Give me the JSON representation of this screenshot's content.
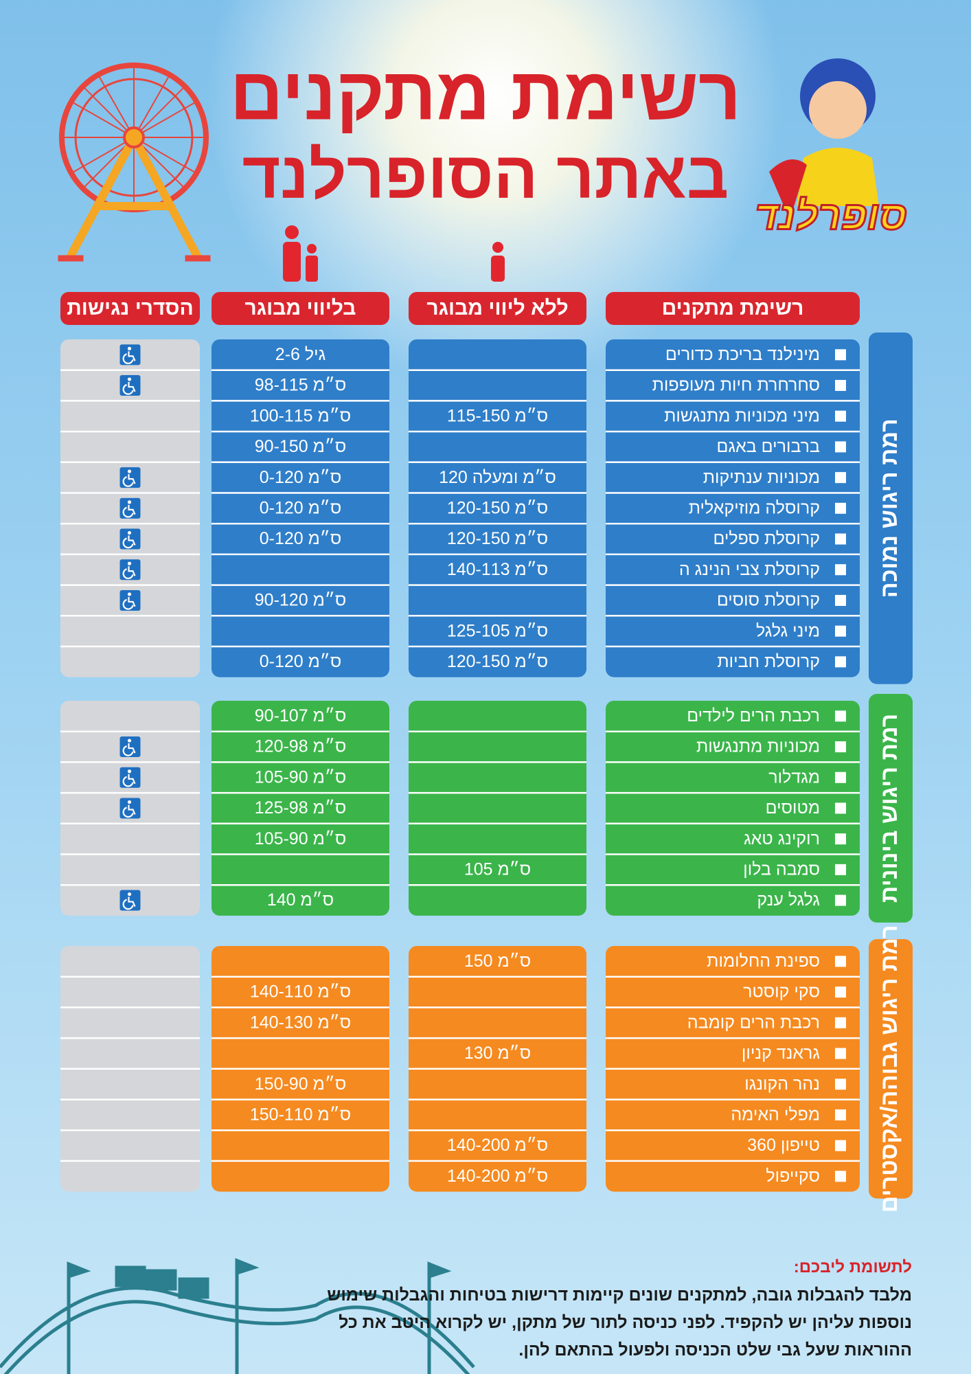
{
  "header": {
    "title_lines": [
      "רשימת מתקנים",
      "באתר הסופרלנד"
    ],
    "logo": "סופרלנד"
  },
  "table": {
    "columns": [
      "רשימת מתקנים",
      "ללא ליווי מבוגר",
      "בליווי מבוגר",
      "הסדרי נגישות"
    ],
    "sections": [
      {
        "label": "רמת ריגוש נמוכה",
        "color": "#2f7ec9",
        "rows": [
          {
            "name": "מינילנד בריכת כדורים",
            "no_adult": null,
            "with_adult": "גיל 2-6",
            "accessible": true
          },
          {
            "name": "סחרחרת חיות מעופפות",
            "no_adult": null,
            "with_adult": "98-115 ס״מ",
            "accessible": true
          },
          {
            "name": "מיני מכוניות מתנגשות",
            "no_adult": "115-150 ס״מ",
            "with_adult": "100-115 ס״מ",
            "accessible": false
          },
          {
            "name": "ברבורים באגם",
            "no_adult": null,
            "with_adult": "90-150 ס״מ",
            "accessible": false
          },
          {
            "name": "מכוניות ענתיקות",
            "no_adult": "120 ס״מ ומעלה",
            "with_adult": "0-120 ס״מ",
            "accessible": true
          },
          {
            "name": "קרוסלה מוזיקאלית",
            "no_adult": "120-150 ס״מ",
            "with_adult": "0-120 ס״מ",
            "accessible": true
          },
          {
            "name": "קרוסלת ספלים",
            "no_adult": "120-150 ס״מ",
            "with_adult": "0-120 ס״מ",
            "accessible": true
          },
          {
            "name": "קרוסלת צבי הנינג ה",
            "no_adult": "140-113 ס״מ",
            "with_adult": null,
            "accessible": true
          },
          {
            "name": "קרוסלת סוסים",
            "no_adult": null,
            "with_adult": "90-120 ס״מ",
            "accessible": true
          },
          {
            "name": "מיני גלגל",
            "no_adult": "125-105 ס״מ",
            "with_adult": null,
            "accessible": false
          },
          {
            "name": "קרוסלת חביות",
            "no_adult": "120-150 ס״מ",
            "with_adult": "0-120 ס״מ",
            "accessible": false
          }
        ]
      },
      {
        "label": "רמת ריגוש בינונית",
        "color": "#3bb54a",
        "rows": [
          {
            "name": "רכבת הרים לילדים",
            "no_adult": null,
            "with_adult": "90-107 ס״מ",
            "accessible": false
          },
          {
            "name": "מכוניות מתנגשות",
            "no_adult": null,
            "with_adult": "120-98 ס״מ",
            "accessible": true
          },
          {
            "name": "מגדלור",
            "no_adult": null,
            "with_adult": "105-90 ס״מ",
            "accessible": true
          },
          {
            "name": "מטוסים",
            "no_adult": null,
            "with_adult": "125-98 ס״מ",
            "accessible": true
          },
          {
            "name": "רוקינג טאג",
            "no_adult": null,
            "with_adult": "105-90 ס״מ",
            "accessible": false
          },
          {
            "name": "סמבה בלון",
            "no_adult": "105 ס״מ",
            "with_adult": null,
            "accessible": false
          },
          {
            "name": "גלגל ענק",
            "no_adult": null,
            "with_adult": "140 ס״מ",
            "accessible": true
          }
        ]
      },
      {
        "label": "רמת ריגוש גבוהה/אקסטרים",
        "color": "#f58a20",
        "rows": [
          {
            "name": "ספינת החלומות",
            "no_adult": "150 ס״מ",
            "with_adult": null,
            "accessible": false
          },
          {
            "name": "סקי קוסטר",
            "no_adult": null,
            "with_adult": "140-110 ס״מ",
            "accessible": false
          },
          {
            "name": "רכבת הרים קומבה",
            "no_adult": null,
            "with_adult": "140-130 ס״מ",
            "accessible": false
          },
          {
            "name": "גראנד קניון",
            "no_adult": "130 ס״מ",
            "with_adult": null,
            "accessible": false
          },
          {
            "name": "נהר הקונגו",
            "no_adult": null,
            "with_adult": "150-90 ס״מ",
            "accessible": false
          },
          {
            "name": "מפלי האימה",
            "no_adult": null,
            "with_adult": "150-110 ס״מ",
            "accessible": false
          },
          {
            "name": "טייפון 360",
            "no_adult": "140-200 ס״מ",
            "with_adult": null,
            "accessible": false
          },
          {
            "name": "סקייפול",
            "no_adult": "140-200 ס״מ",
            "with_adult": null,
            "accessible": false
          }
        ]
      }
    ]
  },
  "note": {
    "title": "לתשומת ליבכם:",
    "lines": [
      "מלבד להגבלות גובה, למתקנים שונים קיימות דרישות בטיחות והגבלות שימוש",
      "נוספות עליהן יש להקפיד. לפני כניסה לתור של מתקן, יש לקרוא היטב את כל",
      "ההוראות שעל גבי שלט הכניסה ולפעול בהתאם להן."
    ]
  }
}
